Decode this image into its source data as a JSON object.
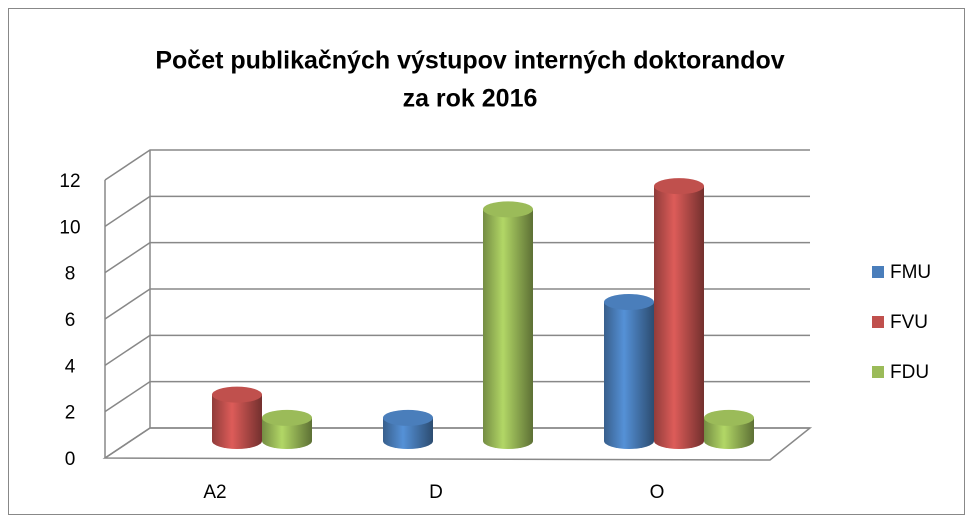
{
  "chart_data": {
    "type": "bar3d",
    "title": [
      "Počet publikačných výstupov  interných doktorandov",
      "za rok 2016"
    ],
    "categories": [
      "A2",
      "D",
      "O"
    ],
    "series": [
      {
        "name": "FMU",
        "color": "#4a7ebb",
        "values": [
          0,
          1,
          6
        ]
      },
      {
        "name": "FVU",
        "color": "#c0504d",
        "values": [
          2,
          0,
          11
        ]
      },
      {
        "name": "FDU",
        "color": "#9bbb59",
        "values": [
          1,
          10,
          1
        ]
      }
    ],
    "ylim": [
      0,
      12
    ],
    "yticks": [
      0,
      2,
      4,
      6,
      8,
      10,
      12
    ],
    "grid": true,
    "legend": "right"
  }
}
